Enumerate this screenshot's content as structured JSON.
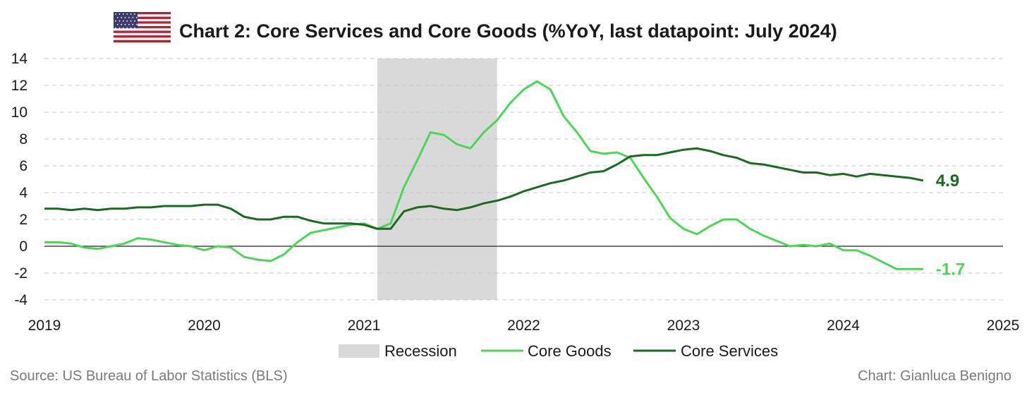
{
  "chart_data": {
    "type": "line",
    "title": "Chart 2: Core Services and Core Goods (%YoY, last datapoint: July 2024)",
    "ylim": [
      -4,
      14
    ],
    "yticks": [
      -4,
      -2,
      0,
      2,
      4,
      6,
      8,
      10,
      12,
      14
    ],
    "xlim": [
      "2019-01",
      "2025-01"
    ],
    "xtick_labels": [
      "2019",
      "2020",
      "2021",
      "2022",
      "2023",
      "2024",
      "2025"
    ],
    "grid": "horizontal dashed",
    "legend_position": "bottom",
    "recession": {
      "label": "Recession",
      "start": "2021-02",
      "end": "2021-11",
      "color": "#d9d9d9"
    },
    "series": [
      {
        "name": "Core Goods",
        "color": "#4fd45a",
        "end_label": "-1.7",
        "points": [
          [
            "2019-01",
            0.3
          ],
          [
            "2019-02",
            0.3
          ],
          [
            "2019-03",
            0.2
          ],
          [
            "2019-04",
            -0.1
          ],
          [
            "2019-05",
            -0.2
          ],
          [
            "2019-06",
            0.0
          ],
          [
            "2019-07",
            0.2
          ],
          [
            "2019-08",
            0.6
          ],
          [
            "2019-09",
            0.5
          ],
          [
            "2019-10",
            0.3
          ],
          [
            "2019-11",
            0.1
          ],
          [
            "2019-12",
            0.0
          ],
          [
            "2020-01",
            -0.3
          ],
          [
            "2020-02",
            0.0
          ],
          [
            "2020-03",
            -0.1
          ],
          [
            "2020-04",
            -0.8
          ],
          [
            "2020-05",
            -1.0
          ],
          [
            "2020-06",
            -1.1
          ],
          [
            "2020-07",
            -0.6
          ],
          [
            "2020-08",
            0.3
          ],
          [
            "2020-09",
            1.0
          ],
          [
            "2020-10",
            1.2
          ],
          [
            "2020-11",
            1.4
          ],
          [
            "2020-12",
            1.6
          ],
          [
            "2021-01",
            1.7
          ],
          [
            "2021-02",
            1.3
          ],
          [
            "2021-03",
            1.7
          ],
          [
            "2021-04",
            4.4
          ],
          [
            "2021-05",
            6.4
          ],
          [
            "2021-06",
            8.5
          ],
          [
            "2021-07",
            8.3
          ],
          [
            "2021-08",
            7.6
          ],
          [
            "2021-09",
            7.3
          ],
          [
            "2021-10",
            8.5
          ],
          [
            "2021-11",
            9.4
          ],
          [
            "2021-12",
            10.7
          ],
          [
            "2022-01",
            11.7
          ],
          [
            "2022-02",
            12.3
          ],
          [
            "2022-03",
            11.7
          ],
          [
            "2022-04",
            9.7
          ],
          [
            "2022-05",
            8.5
          ],
          [
            "2022-06",
            7.1
          ],
          [
            "2022-07",
            6.9
          ],
          [
            "2022-08",
            7.0
          ],
          [
            "2022-09",
            6.6
          ],
          [
            "2022-10",
            5.1
          ],
          [
            "2022-11",
            3.7
          ],
          [
            "2022-12",
            2.1
          ],
          [
            "2023-01",
            1.3
          ],
          [
            "2023-02",
            0.9
          ],
          [
            "2023-03",
            1.5
          ],
          [
            "2023-04",
            2.0
          ],
          [
            "2023-05",
            2.0
          ],
          [
            "2023-06",
            1.3
          ],
          [
            "2023-07",
            0.8
          ],
          [
            "2023-08",
            0.4
          ],
          [
            "2023-09",
            0.0
          ],
          [
            "2023-10",
            0.1
          ],
          [
            "2023-11",
            0.0
          ],
          [
            "2023-12",
            0.2
          ],
          [
            "2024-01",
            -0.3
          ],
          [
            "2024-02",
            -0.3
          ],
          [
            "2024-03",
            -0.7
          ],
          [
            "2024-04",
            -1.2
          ],
          [
            "2024-05",
            -1.7
          ],
          [
            "2024-06",
            -1.7
          ],
          [
            "2024-07",
            -1.7
          ]
        ]
      },
      {
        "name": "Core Services",
        "color": "#1b6a22",
        "end_label": "4.9",
        "points": [
          [
            "2019-01",
            2.8
          ],
          [
            "2019-02",
            2.8
          ],
          [
            "2019-03",
            2.7
          ],
          [
            "2019-04",
            2.8
          ],
          [
            "2019-05",
            2.7
          ],
          [
            "2019-06",
            2.8
          ],
          [
            "2019-07",
            2.8
          ],
          [
            "2019-08",
            2.9
          ],
          [
            "2019-09",
            2.9
          ],
          [
            "2019-10",
            3.0
          ],
          [
            "2019-11",
            3.0
          ],
          [
            "2019-12",
            3.0
          ],
          [
            "2020-01",
            3.1
          ],
          [
            "2020-02",
            3.1
          ],
          [
            "2020-03",
            2.8
          ],
          [
            "2020-04",
            2.2
          ],
          [
            "2020-05",
            2.0
          ],
          [
            "2020-06",
            2.0
          ],
          [
            "2020-07",
            2.2
          ],
          [
            "2020-08",
            2.2
          ],
          [
            "2020-09",
            1.9
          ],
          [
            "2020-10",
            1.7
          ],
          [
            "2020-11",
            1.7
          ],
          [
            "2020-12",
            1.7
          ],
          [
            "2021-01",
            1.6
          ],
          [
            "2021-02",
            1.3
          ],
          [
            "2021-03",
            1.3
          ],
          [
            "2021-04",
            2.6
          ],
          [
            "2021-05",
            2.9
          ],
          [
            "2021-06",
            3.0
          ],
          [
            "2021-07",
            2.8
          ],
          [
            "2021-08",
            2.7
          ],
          [
            "2021-09",
            2.9
          ],
          [
            "2021-10",
            3.2
          ],
          [
            "2021-11",
            3.4
          ],
          [
            "2021-12",
            3.7
          ],
          [
            "2022-01",
            4.1
          ],
          [
            "2022-02",
            4.4
          ],
          [
            "2022-03",
            4.7
          ],
          [
            "2022-04",
            4.9
          ],
          [
            "2022-05",
            5.2
          ],
          [
            "2022-06",
            5.5
          ],
          [
            "2022-07",
            5.6
          ],
          [
            "2022-08",
            6.1
          ],
          [
            "2022-09",
            6.7
          ],
          [
            "2022-10",
            6.8
          ],
          [
            "2022-11",
            6.8
          ],
          [
            "2022-12",
            7.0
          ],
          [
            "2023-01",
            7.2
          ],
          [
            "2023-02",
            7.3
          ],
          [
            "2023-03",
            7.1
          ],
          [
            "2023-04",
            6.8
          ],
          [
            "2023-05",
            6.6
          ],
          [
            "2023-06",
            6.2
          ],
          [
            "2023-07",
            6.1
          ],
          [
            "2023-08",
            5.9
          ],
          [
            "2023-09",
            5.7
          ],
          [
            "2023-10",
            5.5
          ],
          [
            "2023-11",
            5.5
          ],
          [
            "2023-12",
            5.3
          ],
          [
            "2024-01",
            5.4
          ],
          [
            "2024-02",
            5.2
          ],
          [
            "2024-03",
            5.4
          ],
          [
            "2024-04",
            5.3
          ],
          [
            "2024-05",
            5.2
          ],
          [
            "2024-06",
            5.1
          ],
          [
            "2024-07",
            4.9
          ]
        ]
      }
    ]
  },
  "footer": {
    "source": "Source: US Bureau of Labor Statistics (BLS)",
    "credit": "Chart: Gianluca Benigno"
  },
  "flag": {
    "name": "us-flag-icon",
    "stripe_red": "#b22234",
    "canton_blue": "#3c3b6e"
  }
}
